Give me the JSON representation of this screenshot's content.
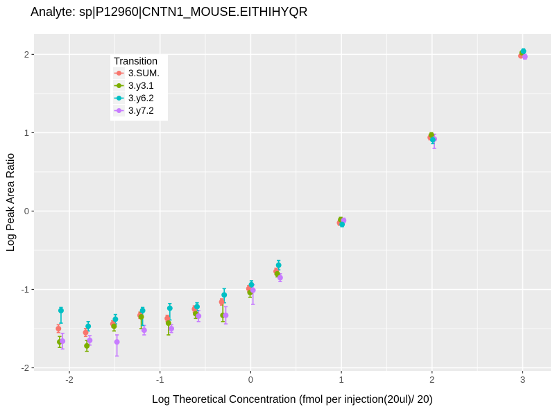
{
  "chart_data": {
    "type": "scatter",
    "title": "Analyte: sp|P12960|CNTN1_MOUSE.EITHIHYQR",
    "xlabel": "Log Theoretical Concentration (fmol per injection(20ul)/ 20)",
    "ylabel": "Log Peak Area Ratio",
    "panel_fill": "#EBEBEB",
    "grid_color": "#FFFFFF",
    "tick_mark_color": "#333333",
    "tick_label_color": "#4D4D4D",
    "grid": "major+minor",
    "xlim": [
      -2.39,
      3.31
    ],
    "ylim": [
      -2.04,
      2.26
    ],
    "xticks": [
      -2,
      -1,
      0,
      1,
      2,
      3
    ],
    "yticks": [
      -2,
      -1,
      0,
      1,
      2
    ],
    "legend": {
      "title": "Transition",
      "position": "inside-top-left",
      "key_fill": "#F2F2F2",
      "items": [
        {
          "label": "3.SUM.",
          "color": "#F8766D"
        },
        {
          "label": "3.y3.1",
          "color": "#7CAE00"
        },
        {
          "label": "3.y6.2",
          "color": "#00BFC4"
        },
        {
          "label": "3.y7.2",
          "color": "#C77CFF"
        }
      ]
    },
    "x": [
      -2.1,
      -1.8,
      -1.5,
      -1.2,
      -0.9,
      -0.6,
      -0.3,
      0,
      0.3,
      1,
      2,
      3
    ],
    "series": [
      {
        "name": "3.SUM.",
        "color": "#F8766D",
        "dodge": -0.02,
        "y": [
          -1.5,
          -1.55,
          -1.44,
          -1.33,
          -1.37,
          -1.25,
          -1.16,
          -0.99,
          -0.77,
          -0.15,
          0.94,
          1.98
        ],
        "ymin": [
          -1.55,
          -1.6,
          -1.48,
          -1.37,
          -1.41,
          -1.29,
          -1.2,
          -1.03,
          -0.81,
          -0.18,
          0.91,
          1.96
        ],
        "ymax": [
          -1.45,
          -1.5,
          -1.4,
          -1.29,
          -1.33,
          -1.21,
          -1.12,
          -0.95,
          -0.73,
          -0.12,
          0.97,
          2.0
        ]
      },
      {
        "name": "3.y3.1",
        "color": "#7CAE00",
        "dodge": -0.007,
        "y": [
          -1.67,
          -1.72,
          -1.47,
          -1.35,
          -1.43,
          -1.31,
          -1.33,
          -1.04,
          -0.8,
          -0.11,
          0.97,
          2.02
        ],
        "ymin": [
          -1.74,
          -1.79,
          -1.53,
          -1.5,
          -1.58,
          -1.37,
          -1.41,
          -1.1,
          -0.84,
          -0.14,
          0.94,
          2.0
        ],
        "ymax": [
          -1.6,
          -1.65,
          -1.41,
          -1.29,
          -1.35,
          -1.25,
          -1.14,
          -0.98,
          -0.76,
          -0.08,
          1.0,
          2.04
        ]
      },
      {
        "name": "3.y7.2",
        "color": "#C77CFF",
        "dodge": 0.025,
        "y": [
          -1.66,
          -1.65,
          -1.67,
          -1.52,
          -1.5,
          -1.34,
          -1.33,
          -1.01,
          -0.85,
          -0.12,
          0.92,
          1.97
        ],
        "ymin": [
          -1.76,
          -1.71,
          -1.85,
          -1.58,
          -1.55,
          -1.41,
          -1.44,
          -1.19,
          -0.9,
          -0.15,
          0.8,
          1.94
        ],
        "ymax": [
          -1.56,
          -1.59,
          -1.58,
          -1.46,
          -1.45,
          -1.27,
          -1.22,
          -0.94,
          -0.8,
          -0.09,
          0.98,
          2.0
        ]
      },
      {
        "name": "3.y6.2",
        "color": "#00BFC4",
        "dodge": 0.008,
        "y": [
          -1.27,
          -1.47,
          -1.38,
          -1.27,
          -1.24,
          -1.22,
          -1.07,
          -0.94,
          -0.69,
          -0.17,
          0.91,
          2.04
        ],
        "ymin": [
          -1.43,
          -1.53,
          -1.44,
          -1.46,
          -1.39,
          -1.27,
          -1.17,
          -0.99,
          -0.75,
          -0.2,
          0.86,
          2.01
        ],
        "ymax": [
          -1.23,
          -1.41,
          -1.32,
          -1.23,
          -1.18,
          -1.17,
          -0.99,
          -0.89,
          -0.63,
          -0.14,
          0.95,
          2.07
        ]
      }
    ]
  }
}
